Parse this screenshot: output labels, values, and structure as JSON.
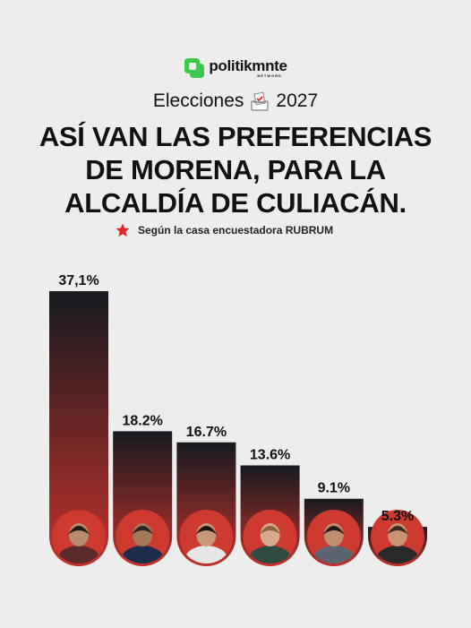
{
  "brand": {
    "name": "politikmnte",
    "sub": "NETWORK",
    "accent": "#3cc84a"
  },
  "event": {
    "label": "Elecciones",
    "year": "2027"
  },
  "title_lines": [
    "ASÍ VAN LAS PREFERENCIAS",
    "DE MORENA, PARA LA",
    "ALCALDÍA DE CULIACÁN."
  ],
  "source": {
    "text": "Según la casa encuestadora RUBRUM",
    "icon": "star-icon",
    "icon_color": "#e0262b"
  },
  "chart_data": {
    "type": "bar",
    "categories": [
      "candidate-1",
      "candidate-2",
      "candidate-3",
      "candidate-4",
      "candidate-5",
      "candidate-6"
    ],
    "values": [
      37.1,
      18.2,
      16.7,
      13.6,
      9.1,
      5.3
    ],
    "value_labels": [
      "37,1%",
      "18.2%",
      "16.7%",
      "13.6%",
      "9.1%",
      "5.3%"
    ],
    "title": "",
    "xlabel": "",
    "ylabel": "",
    "ylim": [
      0,
      37.1
    ],
    "grid": false,
    "legend": "none",
    "bar_gradient": [
      "#161a20",
      "#c1312b"
    ],
    "photo_icon": "candidate-portrait-icon"
  }
}
